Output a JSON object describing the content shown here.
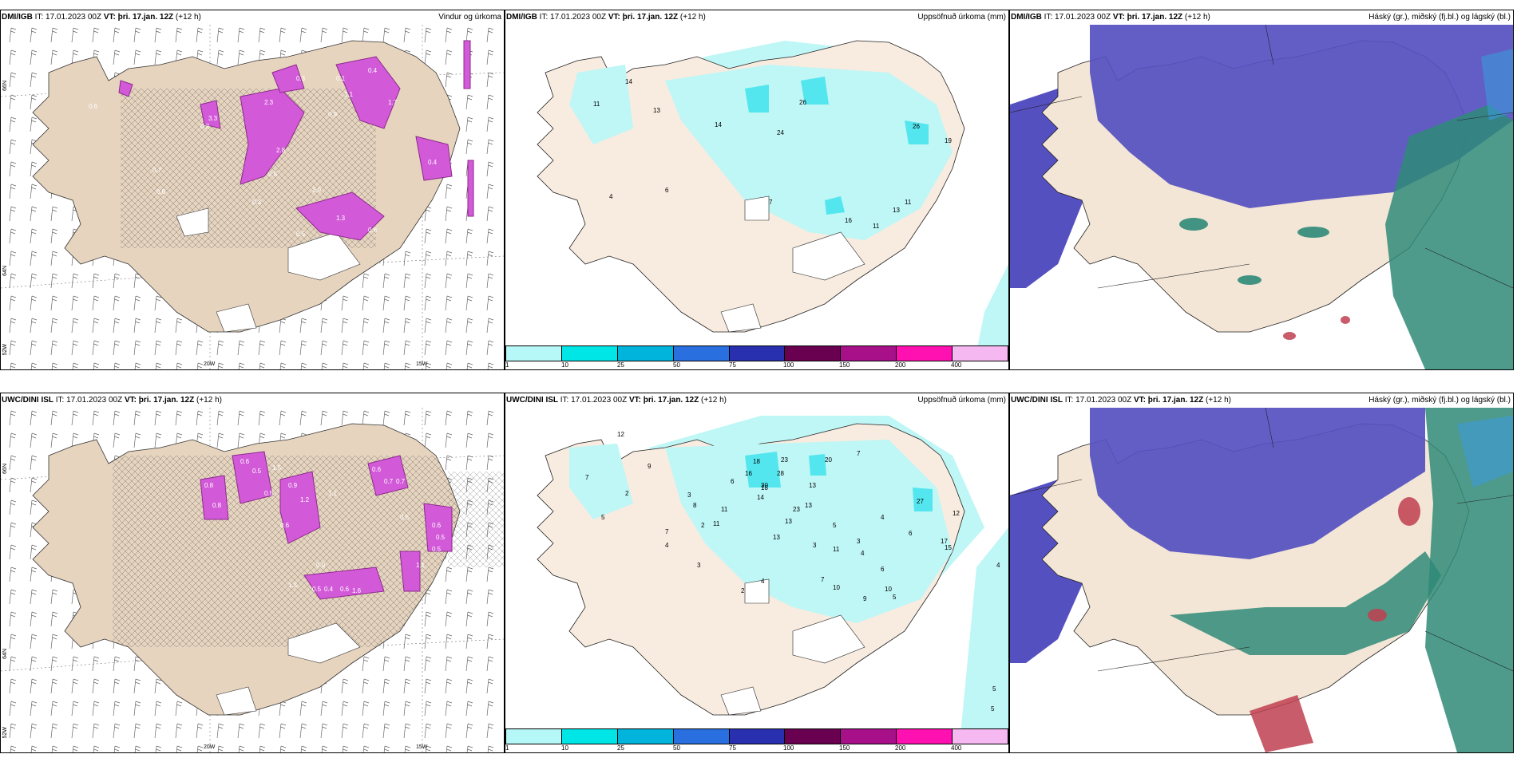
{
  "panels": [
    {
      "id": "p1",
      "model": "DMI/IGB",
      "it": "IT: 17.01.2023 00Z",
      "vt_label": "VT:",
      "vt": "þri. 17.jan. 12Z",
      "lead": "(+12 h)",
      "title": "Vindur og úrkoma",
      "axis": {
        "lat_top": "66N",
        "lat_mid": "64N",
        "lat_bot": "52W",
        "lon_a": "20W",
        "lon_b": "15W"
      },
      "labels": [
        "2.3",
        "0.6",
        "0.2",
        "0.7",
        "0.6",
        "0.3",
        "0.4",
        "0.1",
        "0.3",
        "1.1",
        "0.9",
        "3.3",
        "2.8",
        "1.7",
        "0.5",
        "2.9",
        "0.5",
        "1.3",
        "0.8",
        "0.4"
      ]
    },
    {
      "id": "p2",
      "model": "DMI/IGB",
      "it": "IT: 17.01.2023 00Z",
      "vt_label": "VT:",
      "vt": "þri. 17.jan. 12Z",
      "lead": "(+12 h)",
      "title": "Uppsöfnuð úrkoma (mm)",
      "labels": [
        "14",
        "11",
        "13",
        "14",
        "26",
        "24",
        "26",
        "19",
        "6",
        "7",
        "4",
        "16",
        "11",
        "13",
        "11"
      ]
    },
    {
      "id": "p3",
      "model": "DMI/IGB",
      "it": "IT: 17.01.2023 00Z",
      "vt_label": "VT:",
      "vt": "þri. 17.jan. 12Z",
      "lead": "(+12 h)",
      "title": "Háský (gr.), miðský (fj.bl.) og lágský (bl.)"
    },
    {
      "id": "p4",
      "model": "UWC/DINI ISL",
      "it": "IT: 17.01.2023 00Z",
      "vt_label": "VT:",
      "vt": "þri. 17.jan. 12Z",
      "lead": "(+12 h)",
      "title": "",
      "axis": {
        "lat_top": "66N",
        "lat_mid": "64N",
        "lat_bot": "52W",
        "lon_a": "20W",
        "lon_b": "15W"
      },
      "labels": [
        "0.6",
        "0.5",
        "1.5",
        "0.9",
        "0.8",
        "0.8",
        "1.2",
        "0.6",
        "0.7",
        "0.7",
        "0.5",
        "1.1",
        "0.5",
        "0.6",
        "0.5",
        "0.5",
        "1.1",
        "0.6",
        "1.3",
        "0.9",
        "0.5",
        "0.4",
        "0.6",
        "1.6"
      ]
    },
    {
      "id": "p5",
      "model": "UWC/DINI ISL",
      "it": "IT: 17.01.2023 00Z",
      "vt_label": "VT:",
      "vt": "þri. 17.jan. 12Z",
      "lead": "(+12 h)",
      "title": "Uppsöfnuð úrkoma (mm)",
      "labels": [
        "12",
        "9",
        "2",
        "7",
        "5",
        "18",
        "23",
        "20",
        "7",
        "16",
        "13",
        "27",
        "12",
        "30",
        "28",
        "14",
        "6",
        "3",
        "18",
        "4",
        "11",
        "23",
        "13",
        "5",
        "17",
        "13",
        "11",
        "13",
        "3",
        "6",
        "3",
        "4",
        "15",
        "8",
        "2",
        "7",
        "11",
        "7",
        "10",
        "6",
        "4",
        "5",
        "10",
        "9",
        "2",
        "3",
        "4",
        "4",
        "5",
        "5"
      ]
    },
    {
      "id": "p6",
      "model": "UWC/DINI ISL",
      "it": "IT: 17.01.2023 00Z",
      "vt_label": "VT:",
      "vt": "þri. 17.jan. 12Z",
      "lead": "(+12 h)",
      "title": "Háský (gr.), miðský (fj.bl.) og lágský (bl.)"
    }
  ],
  "colorbar": {
    "colors": [
      "#b6f7f7",
      "#00e6e6",
      "#00b4dc",
      "#2a6fe0",
      "#2830b0",
      "#6a0050",
      "#a8108a",
      "#ff10b0",
      "#f5b8f0"
    ],
    "labels": [
      "1",
      "10",
      "25",
      "50",
      "75",
      "100",
      "150",
      "200",
      "400"
    ]
  },
  "colors": {
    "land": "#f3e6d6",
    "map_land_p1": "#e6d4bf",
    "ocean": "#ffffff",
    "precip_mid": "#d25ad8",
    "precip_dark": "#8c2a8a",
    "cyan": "#bff6f6",
    "cyan2": "#54e6ee",
    "cloud_high": "#5550c0",
    "cloud_mid": "#2f8a78",
    "cloud_low": "#3c9ad8"
  }
}
